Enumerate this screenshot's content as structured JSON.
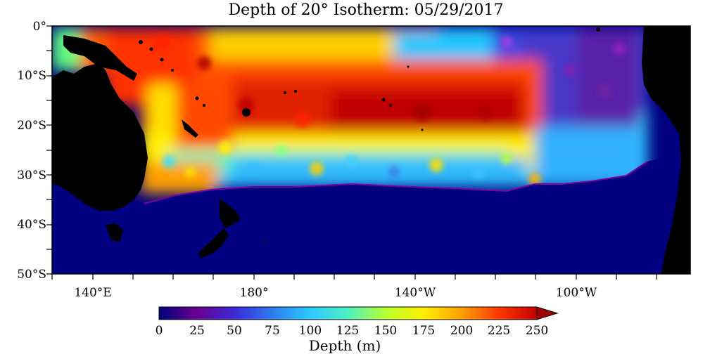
{
  "title": "Depth of 20° Isotherm: 05/29/2017",
  "lat_labels": [
    "0°",
    "10°S",
    "20°S",
    "30°S",
    "40°S",
    "50°S"
  ],
  "lon_labels": [
    "140°E",
    "180°",
    "140°W",
    "100°W"
  ],
  "colorbar": {
    "label": "Depth (m)",
    "ticks": [
      "0",
      "25",
      "50",
      "75",
      "100",
      "125",
      "150",
      "175",
      "200",
      "225",
      "250"
    ],
    "min": 0,
    "max": 250,
    "colors": [
      "#00007a",
      "#6a0090",
      "#3a2ad8",
      "#2f7bef",
      "#2cc8ff",
      "#4ff0c0",
      "#b8ff30",
      "#fff000",
      "#ffa000",
      "#ff3800",
      "#c00000",
      "#a00000"
    ]
  },
  "map": {
    "land_color": "#000000",
    "shallow_fill_color": "#000080"
  }
}
